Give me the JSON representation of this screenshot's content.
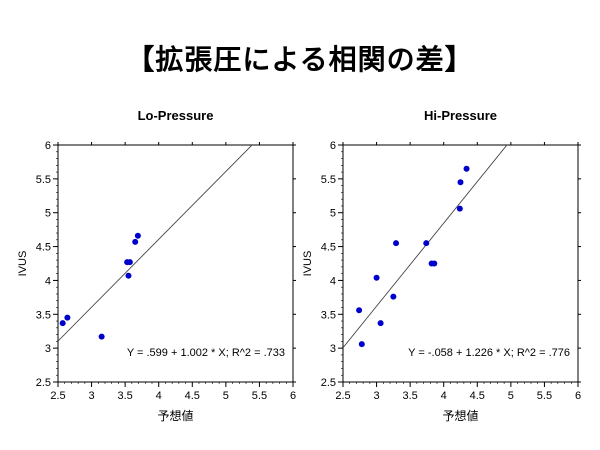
{
  "slide": {
    "title": "【拡張圧による相関の差】"
  },
  "chart_data": [
    {
      "type": "scatter",
      "title": "Lo-Pressure",
      "xlabel": "予想値",
      "ylabel": "IVUS",
      "xlim": [
        2.5,
        6
      ],
      "ylim": [
        2.5,
        6
      ],
      "x_ticks": [
        "2.5",
        "3",
        "3.5",
        "4",
        "4.5",
        "5",
        "5.5",
        "6"
      ],
      "y_ticks": [
        "2.5",
        "3",
        "3.5",
        "4",
        "4.5",
        "5",
        "5.5",
        "6"
      ],
      "points": [
        {
          "x": 2.57,
          "y": 3.37
        },
        {
          "x": 2.64,
          "y": 3.45
        },
        {
          "x": 3.15,
          "y": 3.17
        },
        {
          "x": 3.53,
          "y": 4.27
        },
        {
          "x": 3.57,
          "y": 4.27
        },
        {
          "x": 3.55,
          "y": 4.07
        },
        {
          "x": 3.65,
          "y": 4.57
        },
        {
          "x": 3.69,
          "y": 4.66
        }
      ],
      "fit": {
        "intercept": 0.599,
        "slope": 1.002
      },
      "annotation": "Y = .599 + 1.002 * X; R^2 = .733",
      "series_color": "#0000cc"
    },
    {
      "type": "scatter",
      "title": "Hi-Pressure",
      "xlabel": "予想値",
      "ylabel": "IVUS",
      "xlim": [
        2.5,
        6
      ],
      "ylim": [
        2.5,
        6
      ],
      "x_ticks": [
        "2.5",
        "3",
        "3.5",
        "4",
        "4.5",
        "5",
        "5.5",
        "6"
      ],
      "y_ticks": [
        "2.5",
        "3",
        "3.5",
        "4",
        "4.5",
        "5",
        "5.5",
        "6"
      ],
      "points": [
        {
          "x": 2.74,
          "y": 3.56
        },
        {
          "x": 2.78,
          "y": 3.06
        },
        {
          "x": 3.0,
          "y": 4.04
        },
        {
          "x": 3.06,
          "y": 3.37
        },
        {
          "x": 3.25,
          "y": 3.76
        },
        {
          "x": 3.29,
          "y": 4.55
        },
        {
          "x": 3.74,
          "y": 4.55
        },
        {
          "x": 3.82,
          "y": 4.25
        },
        {
          "x": 3.86,
          "y": 4.25
        },
        {
          "x": 4.24,
          "y": 5.06
        },
        {
          "x": 4.25,
          "y": 5.45
        },
        {
          "x": 4.34,
          "y": 5.65
        }
      ],
      "fit": {
        "intercept": -0.058,
        "slope": 1.226
      },
      "annotation": "Y = -.058 + 1.226 * X; R^2 = .776",
      "series_color": "#0000cc"
    }
  ]
}
